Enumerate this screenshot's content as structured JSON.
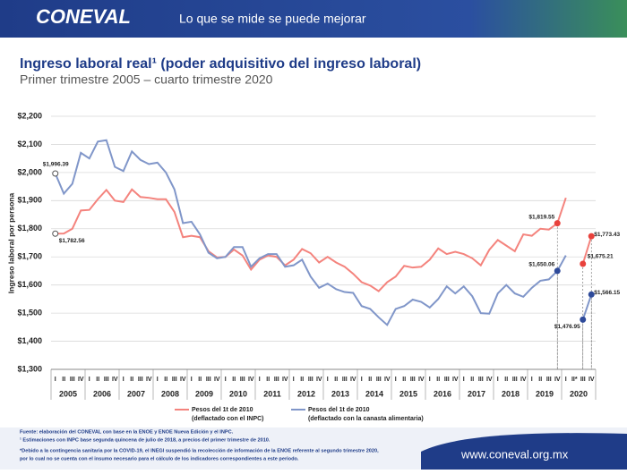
{
  "header": {
    "logo": "CONEVAL",
    "tagline": "Lo que se mide se puede mejorar",
    "website": "www.coneval.org.mx"
  },
  "chart_data": {
    "type": "line",
    "title": "Ingreso laboral real¹ (poder adquisitivo del ingreso laboral)",
    "subtitle": "Primer trimestre 2005 – cuarto trimestre 2020",
    "y_label": "Ingreso laboral por persona",
    "categories": [
      "I",
      "II",
      "III",
      "IV",
      "I",
      "II",
      "III",
      "IV",
      "I",
      "II",
      "III",
      "IV",
      "I",
      "II",
      "III",
      "IV",
      "I",
      "II",
      "III",
      "IV",
      "I",
      "II",
      "III",
      "IV",
      "I",
      "II",
      "III",
      "IV",
      "I",
      "II",
      "III",
      "IV",
      "I",
      "II",
      "III",
      "IV",
      "I",
      "II",
      "III",
      "IV",
      "I",
      "II",
      "III",
      "IV",
      "I",
      "II",
      "III",
      "IV",
      "I",
      "II",
      "III",
      "IV",
      "I",
      "II",
      "III",
      "IV",
      "I",
      "II",
      "III",
      "IV",
      "I",
      "II*",
      "III",
      "IV"
    ],
    "x_groups": [
      "2005",
      "2006",
      "2007",
      "2008",
      "2009",
      "2010",
      "2011",
      "2012",
      "2013",
      "2014",
      "2015",
      "2016",
      "2017",
      "2018",
      "2019",
      "2020"
    ],
    "ylim": [
      1300,
      2200
    ],
    "yticks": [
      {
        "value": 1300,
        "label": "$1,300"
      },
      {
        "value": 1400,
        "label": "$1,400"
      },
      {
        "value": 1500,
        "label": "$1,500"
      },
      {
        "value": 1600,
        "label": "$1,600"
      },
      {
        "value": 1700,
        "label": "$1,700"
      },
      {
        "value": 1800,
        "label": "$1,800"
      },
      {
        "value": 1900,
        "label": "$1,900"
      },
      {
        "value": 2000,
        "label": "$2,000"
      },
      {
        "value": 2100,
        "label": "$2,100"
      },
      {
        "value": 2200,
        "label": "$2,200"
      }
    ],
    "grid": true,
    "series": [
      {
        "name": "Pesos del 1t de 2010",
        "note": "(deflactado con el INPC)",
        "color": "#f4837d",
        "marker_color": "#e8413c",
        "values": [
          1782.56,
          1783,
          1800,
          1865,
          1867,
          1905,
          1938,
          1900,
          1895,
          1940,
          1913,
          1910,
          1905,
          1905,
          1860,
          1770,
          1775,
          1770,
          1720,
          1698,
          1700,
          1726,
          1705,
          1655,
          1690,
          1705,
          1700,
          1670,
          1690,
          1728,
          1713,
          1680,
          1700,
          1680,
          1665,
          1640,
          1610,
          1598,
          1578,
          1610,
          1630,
          1668,
          1662,
          1665,
          1690,
          1730,
          1710,
          1718,
          1710,
          1695,
          1670,
          1725,
          1760,
          1740,
          1720,
          1780,
          1775,
          1800,
          1797,
          1819.55,
          1910,
          null,
          1675.21,
          1773.43
        ],
        "value_labels": [
          "$1,782.56",
          null,
          null,
          null,
          null,
          null,
          null,
          null,
          null,
          null,
          null,
          null,
          null,
          null,
          null,
          null,
          null,
          null,
          null,
          null,
          null,
          null,
          null,
          null,
          null,
          null,
          null,
          null,
          null,
          null,
          null,
          null,
          null,
          null,
          null,
          null,
          null,
          null,
          null,
          null,
          null,
          null,
          null,
          null,
          null,
          null,
          null,
          null,
          null,
          null,
          null,
          null,
          null,
          null,
          null,
          null,
          null,
          null,
          null,
          "$1,819.55",
          null,
          null,
          "$1,675.21",
          "$1,773.43"
        ]
      },
      {
        "name": "Pesos del 1t de 2010",
        "note": "(deflactado con la canasta alimentaria)",
        "color": "#8096c9",
        "marker_color": "#2e4a9a",
        "values": [
          1996.39,
          1925,
          1960,
          2070,
          2050,
          2110,
          2115,
          2020,
          2005,
          2075,
          2045,
          2030,
          2035,
          2000,
          1940,
          1820,
          1825,
          1780,
          1715,
          1695,
          1700,
          1735,
          1735,
          1665,
          1695,
          1710,
          1710,
          1665,
          1670,
          1690,
          1630,
          1590,
          1605,
          1585,
          1575,
          1572,
          1525,
          1515,
          1485,
          1458,
          1515,
          1525,
          1548,
          1540,
          1520,
          1550,
          1595,
          1570,
          1595,
          1560,
          1500,
          1498,
          1570,
          1600,
          1570,
          1558,
          1590,
          1615,
          1620,
          1650.06,
          1705,
          null,
          1476.95,
          1566.15
        ],
        "value_labels": [
          "$1,996.39",
          null,
          null,
          null,
          null,
          null,
          null,
          null,
          null,
          null,
          null,
          null,
          null,
          null,
          null,
          null,
          null,
          null,
          null,
          null,
          null,
          null,
          null,
          null,
          null,
          null,
          null,
          null,
          null,
          null,
          null,
          null,
          null,
          null,
          null,
          null,
          null,
          null,
          null,
          null,
          null,
          null,
          null,
          null,
          null,
          null,
          null,
          null,
          null,
          null,
          null,
          null,
          null,
          null,
          null,
          null,
          null,
          null,
          null,
          "$1,650.06",
          null,
          null,
          "$1,476.95",
          "$1,566.15"
        ]
      }
    ]
  },
  "notes": [
    "Fuente: elaboración del CONEVAL con base en la ENOE y ENOE Nueva Edición y el INPC.",
    "¹ Estimaciones con INPC base segunda quincena de julio de 2018, a precios del primer trimestre de 2010.",
    "*Debido a la contingencia sanitaria por la COVID-19, el INEGI suspendió la recolección de información de la ENOE referente al segundo trimestre 2020,",
    "por lo cual no se cuenta con el insumo necesario para el cálculo de los indicadores correspondientes a este periodo."
  ]
}
